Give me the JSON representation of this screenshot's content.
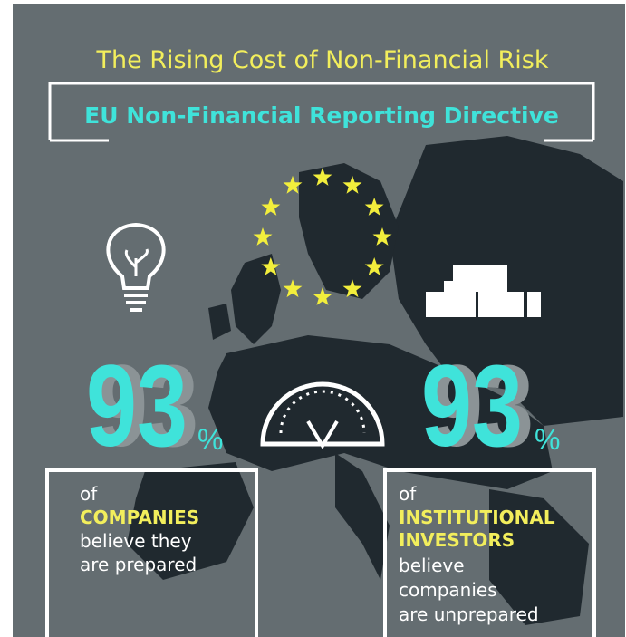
{
  "header": {
    "title": "The Rising Cost of Non-Financial Risk",
    "subtitle": "EU Non-Financial Reporting Directive"
  },
  "stats": [
    {
      "number": "93",
      "unit": "%",
      "lines": [
        "of",
        "COMPANIES",
        "believe they",
        "are prepared"
      ]
    },
    {
      "number": "93",
      "unit": "%",
      "lines": [
        "of",
        "INSTITUTIONAL",
        "INVESTORS",
        "believe",
        "companies",
        "are unprepared"
      ]
    }
  ]
}
